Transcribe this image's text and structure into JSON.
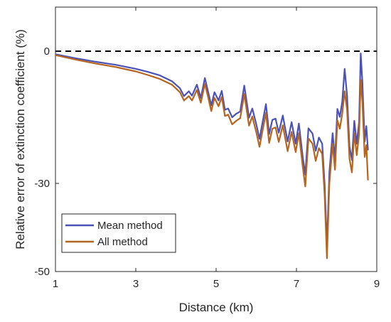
{
  "chart_data": {
    "type": "line",
    "xlabel": "Distance (km)",
    "ylabel": "Relative error of extinction coefficient (%)",
    "xlim": [
      1,
      9
    ],
    "ylim": [
      -50,
      10
    ],
    "x_ticks": [
      "1",
      "3",
      "5",
      "7",
      "9"
    ],
    "y_ticks": [
      "0",
      "-30",
      "-50"
    ],
    "y_tick_values": [
      0,
      -30,
      -50
    ],
    "x_tick_values": [
      1,
      3,
      5,
      7,
      9
    ],
    "reference_line": {
      "y": 0,
      "style": "dashed",
      "color": "#000000"
    },
    "legend_position": "bottom-left",
    "grid": false,
    "series": [
      {
        "name": "Mean method",
        "color": "#4a52b8",
        "points": [
          [
            1.0,
            -0.7
          ],
          [
            1.5,
            -1.6
          ],
          [
            2.0,
            -2.4
          ],
          [
            2.5,
            -3.1
          ],
          [
            3.0,
            -4.0
          ],
          [
            3.3,
            -4.7
          ],
          [
            3.6,
            -5.5
          ],
          [
            3.9,
            -6.8
          ],
          [
            4.1,
            -8.4
          ],
          [
            4.2,
            -10.2
          ],
          [
            4.32,
            -9.1
          ],
          [
            4.4,
            -10.1
          ],
          [
            4.52,
            -7.6
          ],
          [
            4.62,
            -10.6
          ],
          [
            4.72,
            -6.1
          ],
          [
            4.8,
            -9.2
          ],
          [
            4.88,
            -12.3
          ],
          [
            4.96,
            -9.3
          ],
          [
            5.06,
            -11.2
          ],
          [
            5.14,
            -9.0
          ],
          [
            5.22,
            -13.3
          ],
          [
            5.3,
            -13.0
          ],
          [
            5.4,
            -15.0
          ],
          [
            5.5,
            -14.2
          ],
          [
            5.6,
            -13.7
          ],
          [
            5.7,
            -7.8
          ],
          [
            5.82,
            -15.1
          ],
          [
            5.9,
            -13.0
          ],
          [
            6.0,
            -16.6
          ],
          [
            6.08,
            -19.9
          ],
          [
            6.16,
            -16.0
          ],
          [
            6.24,
            -12.0
          ],
          [
            6.32,
            -18.8
          ],
          [
            6.4,
            -15.6
          ],
          [
            6.48,
            -15.3
          ],
          [
            6.56,
            -18.5
          ],
          [
            6.66,
            -14.6
          ],
          [
            6.78,
            -20.5
          ],
          [
            6.88,
            -16.1
          ],
          [
            6.98,
            -21.0
          ],
          [
            7.06,
            -16.4
          ],
          [
            7.16,
            -24.2
          ],
          [
            7.22,
            -28.0
          ],
          [
            7.3,
            -17.5
          ],
          [
            7.4,
            -18.7
          ],
          [
            7.48,
            -22.6
          ],
          [
            7.56,
            -19.6
          ],
          [
            7.64,
            -21.0
          ],
          [
            7.7,
            -30.1
          ],
          [
            7.76,
            -44.3
          ],
          [
            7.82,
            -27.5
          ],
          [
            7.9,
            -18.6
          ],
          [
            7.96,
            -24.5
          ],
          [
            8.02,
            -13.1
          ],
          [
            8.08,
            -14.9
          ],
          [
            8.14,
            -11.5
          ],
          [
            8.2,
            -4.0
          ],
          [
            8.26,
            -10.1
          ],
          [
            8.32,
            -21.6
          ],
          [
            8.38,
            -24.7
          ],
          [
            8.44,
            -15.8
          ],
          [
            8.5,
            -21.0
          ],
          [
            8.56,
            -16.1
          ],
          [
            8.6,
            -0.5
          ],
          [
            8.64,
            -6.9
          ],
          [
            8.7,
            -20.5
          ],
          [
            8.74,
            -17.0
          ],
          [
            8.78,
            -22.5
          ]
        ]
      },
      {
        "name": "All method",
        "color": "#b5651d",
        "points": [
          [
            1.0,
            -0.9
          ],
          [
            1.5,
            -1.9
          ],
          [
            2.0,
            -2.8
          ],
          [
            2.5,
            -3.6
          ],
          [
            3.0,
            -4.6
          ],
          [
            3.3,
            -5.4
          ],
          [
            3.6,
            -6.3
          ],
          [
            3.9,
            -7.6
          ],
          [
            4.1,
            -9.3
          ],
          [
            4.2,
            -11.2
          ],
          [
            4.32,
            -10.2
          ],
          [
            4.4,
            -11.2
          ],
          [
            4.52,
            -8.8
          ],
          [
            4.62,
            -11.7
          ],
          [
            4.72,
            -7.4
          ],
          [
            4.8,
            -10.4
          ],
          [
            4.88,
            -13.6
          ],
          [
            4.96,
            -10.6
          ],
          [
            5.06,
            -12.5
          ],
          [
            5.14,
            -10.4
          ],
          [
            5.22,
            -14.7
          ],
          [
            5.3,
            -14.4
          ],
          [
            5.4,
            -16.6
          ],
          [
            5.5,
            -15.8
          ],
          [
            5.6,
            -15.2
          ],
          [
            5.7,
            -9.7
          ],
          [
            5.82,
            -16.9
          ],
          [
            5.9,
            -14.8
          ],
          [
            6.0,
            -18.4
          ],
          [
            6.08,
            -21.7
          ],
          [
            6.16,
            -17.9
          ],
          [
            6.24,
            -14.0
          ],
          [
            6.32,
            -20.8
          ],
          [
            6.4,
            -17.6
          ],
          [
            6.48,
            -17.3
          ],
          [
            6.56,
            -20.6
          ],
          [
            6.66,
            -16.8
          ],
          [
            6.78,
            -22.7
          ],
          [
            6.88,
            -18.3
          ],
          [
            6.98,
            -22.9
          ],
          [
            7.06,
            -18.6
          ],
          [
            7.16,
            -26.4
          ],
          [
            7.22,
            -30.7
          ],
          [
            7.3,
            -19.8
          ],
          [
            7.4,
            -21.0
          ],
          [
            7.48,
            -24.9
          ],
          [
            7.56,
            -22.0
          ],
          [
            7.64,
            -23.3
          ],
          [
            7.7,
            -32.6
          ],
          [
            7.76,
            -47.0
          ],
          [
            7.82,
            -30.0
          ],
          [
            7.9,
            -21.0
          ],
          [
            7.96,
            -26.9
          ],
          [
            8.02,
            -15.7
          ],
          [
            8.08,
            -17.6
          ],
          [
            8.14,
            -14.2
          ],
          [
            8.2,
            -9.1
          ],
          [
            8.26,
            -13.3
          ],
          [
            8.32,
            -24.4
          ],
          [
            8.38,
            -27.5
          ],
          [
            8.44,
            -18.6
          ],
          [
            8.5,
            -23.6
          ],
          [
            8.56,
            -18.9
          ],
          [
            8.6,
            -6.5
          ],
          [
            8.64,
            -11.4
          ],
          [
            8.7,
            -24.0
          ],
          [
            8.74,
            -21.3
          ],
          [
            8.78,
            -29.3
          ]
        ]
      }
    ]
  }
}
